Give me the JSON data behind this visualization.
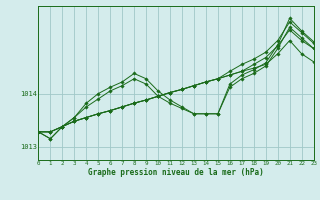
{
  "title": "Graphe pression niveau de la mer (hPa)",
  "bg_color": "#d4ecec",
  "grid_color": "#a0c8c8",
  "line_color": "#1a6b1a",
  "marker_color": "#1a6b1a",
  "xlim": [
    0,
    23
  ],
  "ylim": [
    1012.75,
    1015.65
  ],
  "yticks": [
    1013,
    1014
  ],
  "xticks": [
    0,
    1,
    2,
    3,
    4,
    5,
    6,
    7,
    8,
    9,
    10,
    11,
    12,
    13,
    14,
    15,
    16,
    17,
    18,
    19,
    20,
    21,
    22,
    23
  ],
  "series": [
    [
      1013.28,
      1013.28,
      1013.38,
      1013.48,
      1013.55,
      1013.62,
      1013.68,
      1013.75,
      1013.82,
      1013.88,
      1013.95,
      1014.02,
      1014.08,
      1014.15,
      1014.22,
      1014.28,
      1014.35,
      1014.42,
      1014.48,
      1014.55,
      1014.75,
      1015.0,
      1014.75,
      1014.6
    ],
    [
      1013.28,
      1013.28,
      1013.38,
      1013.48,
      1013.55,
      1013.62,
      1013.68,
      1013.75,
      1013.82,
      1013.88,
      1013.95,
      1014.02,
      1014.08,
      1014.15,
      1014.22,
      1014.28,
      1014.35,
      1014.42,
      1014.55,
      1014.68,
      1014.9,
      1015.2,
      1015.0,
      1014.85
    ],
    [
      1013.28,
      1013.28,
      1013.38,
      1013.48,
      1013.55,
      1013.62,
      1013.68,
      1013.75,
      1013.82,
      1013.88,
      1013.95,
      1014.02,
      1014.08,
      1014.15,
      1014.22,
      1014.28,
      1014.42,
      1014.55,
      1014.65,
      1014.78,
      1015.0,
      1015.35,
      1015.15,
      1014.95
    ],
    [
      1013.28,
      1013.15,
      1013.38,
      1013.55,
      1013.75,
      1013.9,
      1014.05,
      1014.15,
      1014.28,
      1014.18,
      1013.95,
      1013.82,
      1013.72,
      1013.62,
      1013.62,
      1013.62,
      1014.12,
      1014.28,
      1014.38,
      1014.52,
      1014.85,
      1015.25,
      1015.05,
      1014.85
    ],
    [
      1013.28,
      1013.15,
      1013.38,
      1013.55,
      1013.82,
      1014.0,
      1014.12,
      1014.22,
      1014.38,
      1014.28,
      1014.05,
      1013.88,
      1013.75,
      1013.62,
      1013.62,
      1013.62,
      1014.18,
      1014.35,
      1014.45,
      1014.58,
      1014.92,
      1015.42,
      1015.18,
      1014.98
    ]
  ]
}
